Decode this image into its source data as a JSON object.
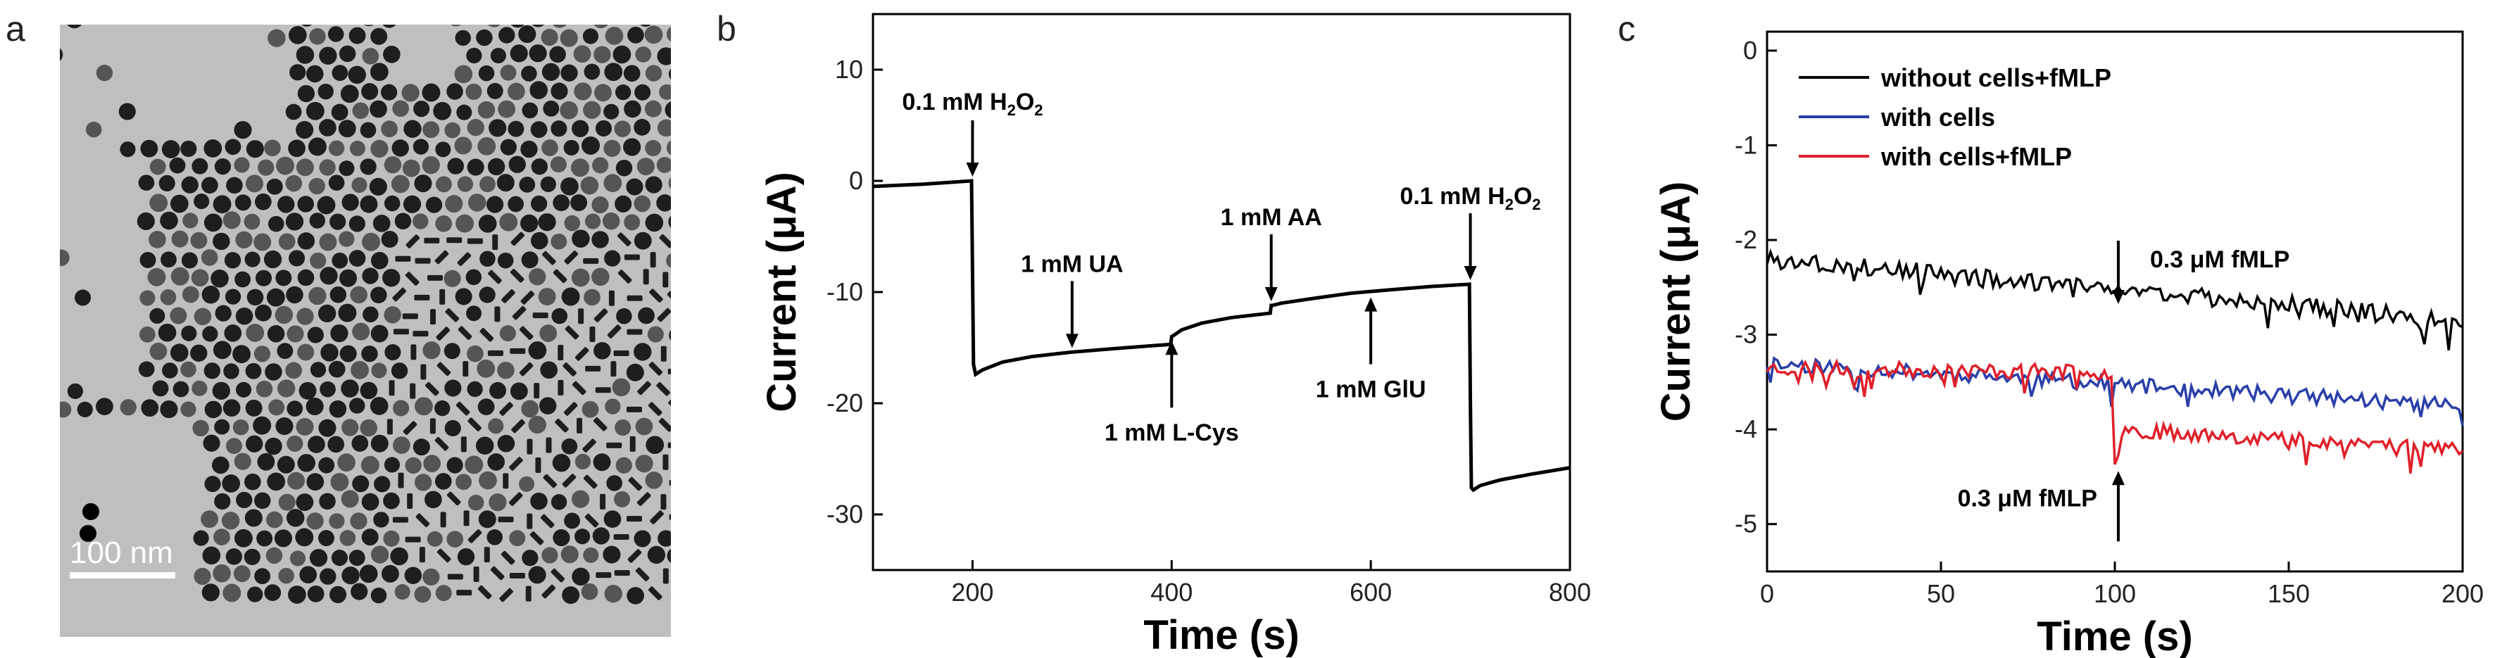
{
  "panels": {
    "a": {
      "letter": "a",
      "scale_bar_label": "100 nm",
      "colors": {
        "background": "#bfbfbf",
        "particle_dark": "#1e1e1e",
        "particle_mid": "#555555",
        "scale_bar": "#ffffff"
      }
    },
    "b": {
      "letter": "b"
    },
    "c": {
      "letter": "c"
    }
  },
  "chart_data": [
    {
      "id": "b",
      "type": "line",
      "xlabel": "Time (s)",
      "ylabel": "Current (μA)",
      "xlim": [
        100,
        800
      ],
      "ylim": [
        -35,
        15
      ],
      "xticks": [
        200,
        400,
        600,
        800
      ],
      "yticks": [
        10,
        0,
        -10,
        -20,
        -30
      ],
      "grid": false,
      "series": [
        {
          "color": "#000000",
          "x": [
            100,
            150,
            199,
            200,
            201,
            203,
            210,
            230,
            260,
            300,
            340,
            370,
            399,
            400,
            402,
            410,
            430,
            460,
            499,
            500,
            501,
            510,
            540,
            580,
            620,
            660,
            699,
            700,
            701,
            703,
            710,
            730,
            760,
            800
          ],
          "y": [
            -0.5,
            -0.3,
            0.0,
            -8,
            -16.5,
            -17.4,
            -17.0,
            -16.3,
            -15.8,
            -15.4,
            -15.1,
            -14.9,
            -14.7,
            -14.0,
            -13.9,
            -13.4,
            -12.8,
            -12.3,
            -11.9,
            -11.2,
            -11.2,
            -11.0,
            -10.6,
            -10.1,
            -9.8,
            -9.5,
            -9.3,
            -20,
            -27.6,
            -27.8,
            -27.4,
            -26.9,
            -26.4,
            -25.8
          ]
        }
      ],
      "annotations": [
        {
          "text": "0.1 mM H",
          "sub": "2",
          "text2": "O",
          "sub2": "2",
          "x": 200,
          "y": 0,
          "dir": "down"
        },
        {
          "text": "1 mM UA",
          "x": 300,
          "y": -15.4,
          "dir": "down"
        },
        {
          "text": "1 mM L-Cys",
          "x": 400,
          "y": -14.0,
          "dir": "up"
        },
        {
          "text": "1 mM AA",
          "x": 500,
          "y": -11.2,
          "dir": "down"
        },
        {
          "text": "1 mM GlU",
          "x": 600,
          "y": -10.1,
          "dir": "up"
        },
        {
          "text": "0.1 mM H",
          "sub": "2",
          "text2": "O",
          "sub2": "2",
          "x": 700,
          "y": -9.3,
          "dir": "down"
        }
      ]
    },
    {
      "id": "c",
      "type": "line",
      "xlabel": "Time (s)",
      "ylabel": "Current (μA)",
      "xlim": [
        0,
        200
      ],
      "ylim": [
        -5.5,
        0.2
      ],
      "xticks": [
        0,
        50,
        100,
        150,
        200
      ],
      "yticks": [
        0,
        -1,
        -2,
        -3,
        -4,
        -5
      ],
      "grid": false,
      "legend_position": "top-left",
      "series": [
        {
          "name": "without cells+fMLP",
          "color": "#000000",
          "start": -2.2,
          "end": -2.85,
          "noise": 0.1,
          "seed": 3
        },
        {
          "name": "with cells",
          "color": "#2a3fa8",
          "start": -3.3,
          "end": -3.75,
          "noise": 0.08,
          "seed": 11
        },
        {
          "name": "with cells+fMLP",
          "color": "#e0202a",
          "start": -3.35,
          "step_at": 100,
          "step_to": -4.0,
          "end": -4.2,
          "noise": 0.08,
          "seed": 23
        }
      ],
      "annotations": [
        {
          "text": "0.3 μM fMLP",
          "x": 101,
          "y": -2.75,
          "dir": "down"
        },
        {
          "text": "0.3 μM fMLP",
          "x": 101,
          "y": -4.35,
          "dir": "up"
        }
      ]
    }
  ]
}
